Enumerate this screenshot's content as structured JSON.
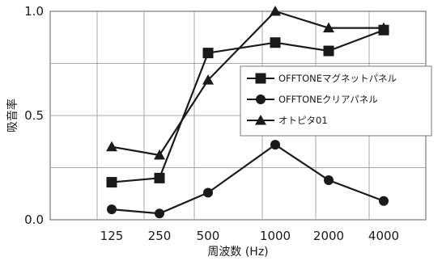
{
  "chart_data": {
    "type": "line",
    "title": "",
    "xlabel": "周波数 (Hz)",
    "ylabel": "吸音率",
    "categories": [
      "125",
      "250",
      "500",
      "1000",
      "2000",
      "4000"
    ],
    "ylim": [
      0.0,
      1.0
    ],
    "yticks": [
      "0.0",
      "0.5",
      "1.0"
    ],
    "grid": true,
    "legend_position": "right",
    "series": [
      {
        "name": "OFFTONEマグネットパネル",
        "marker": "square",
        "color": "#1a1a1a",
        "values": [
          0.18,
          0.2,
          0.8,
          0.85,
          0.81,
          0.91
        ]
      },
      {
        "name": "OFFTONEクリアパネル",
        "marker": "circle",
        "color": "#1a1a1a",
        "values": [
          0.05,
          0.03,
          0.13,
          0.36,
          0.19,
          0.09
        ]
      },
      {
        "name": "オトピタ01",
        "marker": "triangle",
        "color": "#1a1a1a",
        "values": [
          0.35,
          0.31,
          0.67,
          1.0,
          0.92,
          0.92
        ]
      }
    ]
  }
}
